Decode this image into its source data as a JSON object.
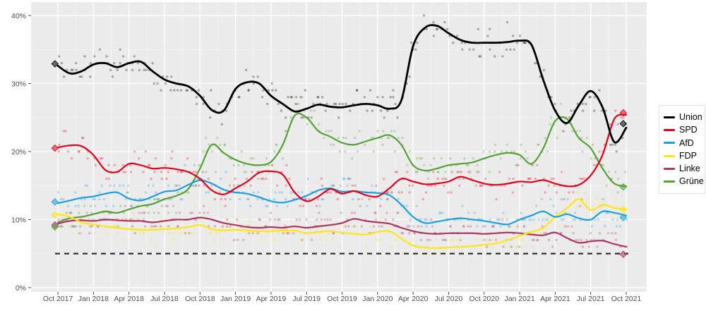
{
  "chart_data": {
    "type": "scatter",
    "description": "German federal election opinion polling: individual poll dots with smoothed trend lines per party, 5% threshold dashed line, election result diamonds at both ends",
    "x_labels": [
      "Oct 2017",
      "Jan 2018",
      "Apr 2018",
      "Jul 2018",
      "Oct 2018",
      "Jan 2019",
      "Apr 2019",
      "Jul 2019",
      "Oct 2019",
      "Jan 2020",
      "Apr 2020",
      "Jul 2020",
      "Oct 2020",
      "Jan 2021",
      "Apr 2021",
      "Jul 2021",
      "Oct 2021"
    ],
    "y_tick_values": [
      0,
      10,
      20,
      30,
      40
    ],
    "y_tick_labels": [
      "0%",
      "10%",
      "20%",
      "30%",
      "40%"
    ],
    "y_minor_values": [
      5,
      15,
      25,
      35
    ],
    "ylim": [
      0,
      42
    ],
    "grid": true,
    "legend_position": "right",
    "threshold": {
      "value": 5,
      "style": "dashed"
    },
    "series": [
      {
        "name": "Union",
        "color": "#000000",
        "values": [
          32.6,
          31.5,
          31.8,
          32.8,
          33.0,
          32.4,
          33.0,
          33.2,
          31.8,
          30.6,
          30.0,
          29.6,
          28.2,
          26.1,
          26.0,
          29.2,
          30.2,
          30.0,
          28.2,
          27.0,
          25.9,
          26.3,
          26.9,
          26.6,
          26.5,
          26.8,
          27.0,
          26.8,
          26.3,
          27.5,
          35.5,
          38.2,
          38.5,
          37.4,
          36.4,
          36.0,
          36.0,
          36.0,
          36.1,
          36.3,
          35.7,
          30.5,
          26.0,
          24.2,
          26.8,
          28.9,
          26.5,
          21.4,
          23.5
        ]
      },
      {
        "name": "SPD",
        "color": "#e3001b",
        "values": [
          20.6,
          20.9,
          20.8,
          19.5,
          17.3,
          17.0,
          18.2,
          18.0,
          17.5,
          17.6,
          17.4,
          17.0,
          16.0,
          14.3,
          13.7,
          14.6,
          15.6,
          16.9,
          17.1,
          16.6,
          14.0,
          12.7,
          13.4,
          14.5,
          13.8,
          14.2,
          13.6,
          13.4,
          14.6,
          16.0,
          15.6,
          15.2,
          15.3,
          15.6,
          16.3,
          15.8,
          15.3,
          15.1,
          15.3,
          15.6,
          15.5,
          15.8,
          15.3,
          14.9,
          15.1,
          16.5,
          19.5,
          24.8,
          25.4
        ]
      },
      {
        "name": "AfD",
        "color": "#1ca0dc",
        "values": [
          12.4,
          12.8,
          13.2,
          13.4,
          13.8,
          14.0,
          13.1,
          12.8,
          13.4,
          14.1,
          14.3,
          15.1,
          15.8,
          15.3,
          14.4,
          14.0,
          13.8,
          13.3,
          12.7,
          12.5,
          12.9,
          13.5,
          14.3,
          14.6,
          14.1,
          14.2,
          14.0,
          13.9,
          13.6,
          12.2,
          10.4,
          9.5,
          9.7,
          10.0,
          10.2,
          10.0,
          9.8,
          9.5,
          9.3,
          10.0,
          10.6,
          11.2,
          10.4,
          10.8,
          10.2,
          10.0,
          11.2,
          11.0,
          10.6
        ]
      },
      {
        "name": "FDP",
        "color": "#ffe513",
        "values": [
          10.8,
          10.4,
          9.6,
          9.3,
          9.0,
          8.8,
          8.6,
          8.5,
          8.5,
          8.6,
          8.7,
          8.9,
          9.2,
          8.6,
          8.4,
          8.5,
          8.4,
          8.3,
          8.3,
          8.4,
          8.4,
          8.0,
          8.2,
          8.3,
          8.1,
          7.9,
          7.8,
          8.2,
          8.3,
          7.2,
          6.2,
          5.9,
          5.8,
          5.9,
          6.0,
          6.1,
          6.3,
          6.5,
          7.0,
          7.6,
          8.2,
          8.8,
          10.4,
          11.7,
          13.0,
          11.4,
          12.2,
          11.7,
          11.5
        ]
      },
      {
        "name": "Linke",
        "color": "#ac3566",
        "values": [
          9.4,
          9.8,
          9.9,
          9.8,
          10.0,
          9.9,
          9.8,
          9.8,
          9.6,
          9.8,
          10.0,
          10.0,
          10.3,
          10.0,
          9.5,
          9.2,
          8.9,
          8.8,
          8.9,
          8.8,
          9.0,
          8.8,
          9.0,
          9.2,
          9.5,
          10.1,
          9.8,
          9.6,
          9.4,
          8.8,
          8.3,
          8.0,
          7.9,
          8.0,
          8.0,
          8.0,
          7.9,
          8.0,
          8.1,
          8.0,
          7.8,
          7.7,
          8.1,
          7.3,
          6.6,
          6.8,
          6.9,
          6.4,
          6.0
        ]
      },
      {
        "name": "Grüne",
        "color": "#56a036",
        "values": [
          9.6,
          10.2,
          10.4,
          10.8,
          11.2,
          11.0,
          11.5,
          12.0,
          12.3,
          13.0,
          13.5,
          14.5,
          17.5,
          21.0,
          19.8,
          18.8,
          18.2,
          18.0,
          18.5,
          21.0,
          25.3,
          25.0,
          23.0,
          22.2,
          21.3,
          21.0,
          21.5,
          22.0,
          22.4,
          21.0,
          18.0,
          17.2,
          17.5,
          18.0,
          18.2,
          18.4,
          19.0,
          19.5,
          19.8,
          19.5,
          18.2,
          20.5,
          24.5,
          24.8,
          22.0,
          20.5,
          17.5,
          15.3,
          14.9
        ]
      }
    ],
    "elections": [
      {
        "year": "2017",
        "x_month": -0.25,
        "results": [
          {
            "party": "Union",
            "value": 32.9
          },
          {
            "party": "SPD",
            "value": 20.5
          },
          {
            "party": "AfD",
            "value": 12.6
          },
          {
            "party": "FDP",
            "value": 10.7
          },
          {
            "party": "Linke",
            "value": 9.2
          },
          {
            "party": "Grüne",
            "value": 8.9
          }
        ]
      },
      {
        "year": "2021",
        "x_month": 47.75,
        "results": [
          {
            "party": "Union",
            "value": 24.1
          },
          {
            "party": "SPD",
            "value": 25.7
          },
          {
            "party": "AfD",
            "value": 10.3
          },
          {
            "party": "FDP",
            "value": 11.5
          },
          {
            "party": "Linke",
            "value": 4.9
          },
          {
            "party": "Grüne",
            "value": 14.8
          }
        ]
      }
    ],
    "colors": {
      "panel_background": "#ebebeb",
      "grid_major": "#ffffff",
      "grid_minor": "#f5f5f5",
      "axis_text": "#4d4d4d",
      "tick_mark": "#333333",
      "threshold_line": "#333333"
    }
  }
}
